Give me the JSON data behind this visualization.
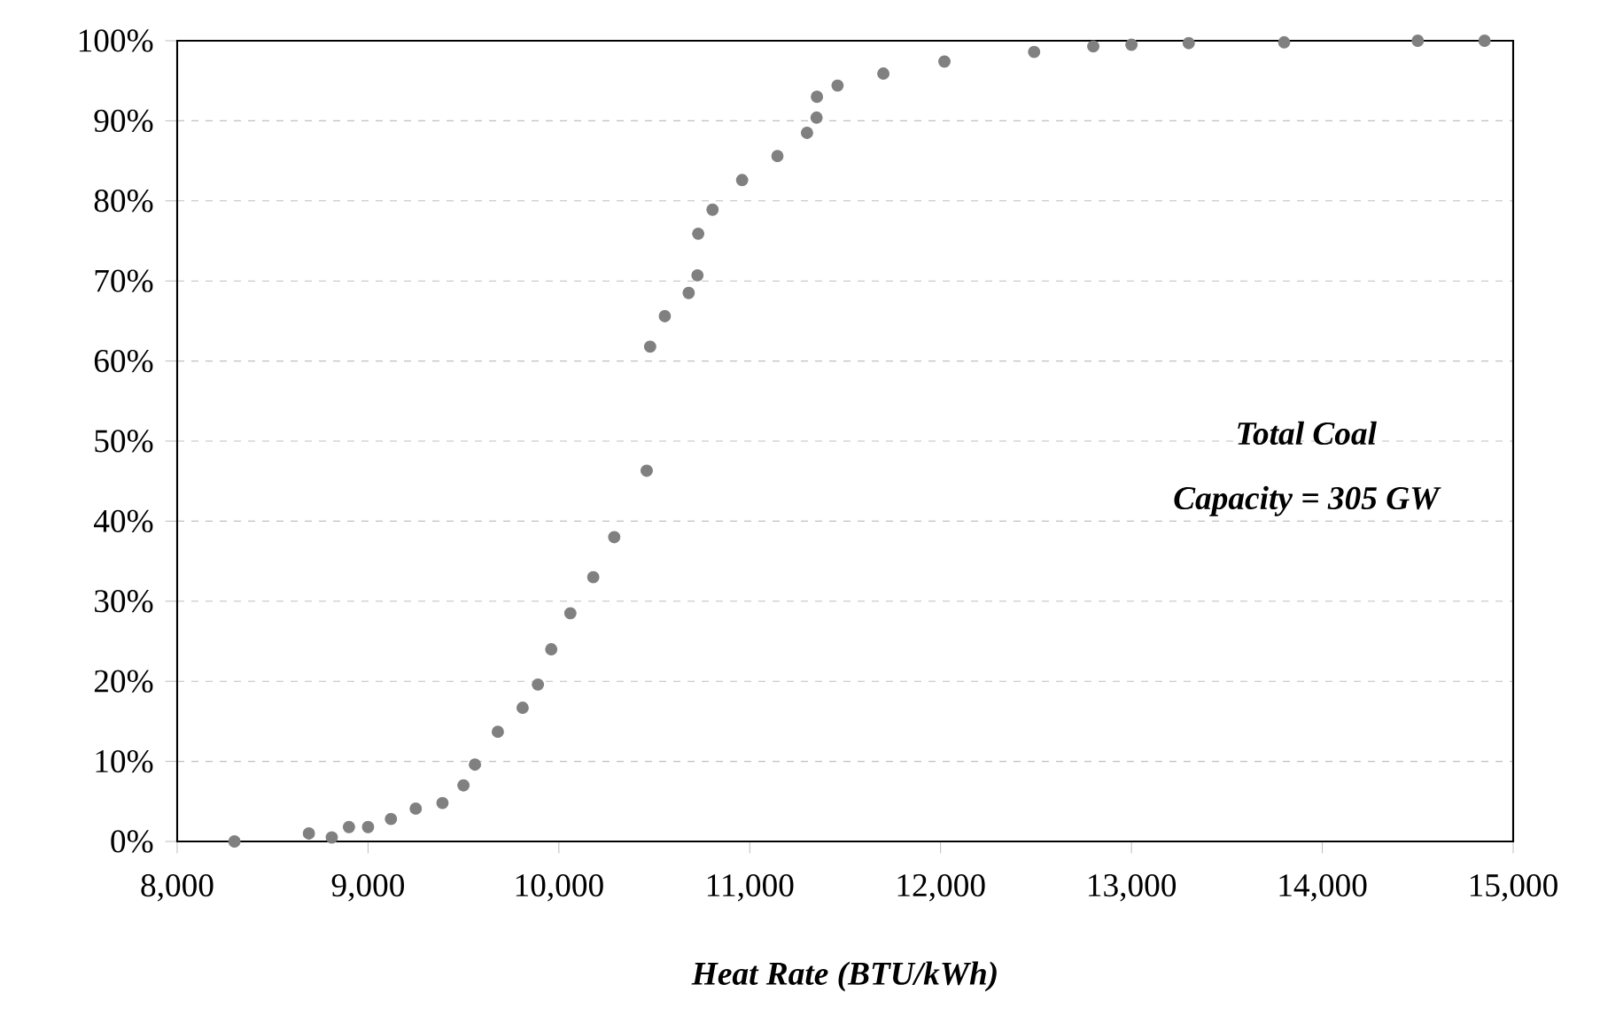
{
  "chart_data": {
    "type": "scatter",
    "xlabel": "Heat Rate (BTU/kWh)",
    "annotations": [
      "Total Coal",
      "Capacity = 305 GW"
    ],
    "series": [
      {
        "color": "#808080",
        "x": [
          8300,
          8690,
          8810,
          8900,
          9000,
          9120,
          9250,
          9390,
          9500,
          9560,
          9680,
          9810,
          9890,
          9960,
          10060,
          10180,
          10290,
          10460,
          10478,
          10555,
          10680,
          10726,
          10730,
          10805,
          10960,
          11145,
          11300,
          11350,
          11352,
          11460,
          11700,
          12020,
          12490,
          12800,
          13000,
          13300,
          13800,
          14500,
          14850
        ],
        "values": [
          0,
          1,
          0.5,
          1.8,
          1.8,
          2.8,
          4.1,
          4.8,
          7,
          9.6,
          13.7,
          16.7,
          19.6,
          24,
          28.5,
          33,
          38,
          46.3,
          61.8,
          65.6,
          68.5,
          70.7,
          75.9,
          78.9,
          82.6,
          85.6,
          88.5,
          90.4,
          93,
          94.4,
          95.9,
          97.4,
          98.6,
          99.3,
          99.5,
          99.7,
          99.8,
          100,
          100
        ]
      }
    ],
    "marker": "circle",
    "grid": "y",
    "xlim": [
      8000,
      15000
    ],
    "xticks": [
      {
        "value": 8000,
        "label": "8,000"
      },
      {
        "value": 9000,
        "label": "9,000"
      },
      {
        "value": 10000,
        "label": "10,000"
      },
      {
        "value": 11000,
        "label": "11,000"
      },
      {
        "value": 12000,
        "label": "12,000"
      },
      {
        "value": 13000,
        "label": "13,000"
      },
      {
        "value": 14000,
        "label": "14,000"
      },
      {
        "value": 15000,
        "label": "15,000"
      }
    ],
    "ylim": [
      0,
      100
    ],
    "yticks": [
      {
        "value": 0,
        "label": "0%"
      },
      {
        "value": 10,
        "label": "10%"
      },
      {
        "value": 20,
        "label": "20%"
      },
      {
        "value": 30,
        "label": "30%"
      },
      {
        "value": 40,
        "label": "40%"
      },
      {
        "value": 50,
        "label": "50%"
      },
      {
        "value": 60,
        "label": "60%"
      },
      {
        "value": 70,
        "label": "70%"
      },
      {
        "value": 80,
        "label": "80%"
      },
      {
        "value": 90,
        "label": "90%"
      },
      {
        "value": 100,
        "label": "100%"
      }
    ]
  }
}
